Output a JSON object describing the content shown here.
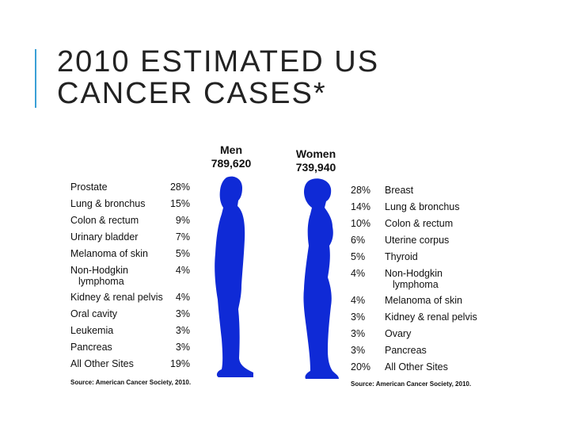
{
  "title": {
    "line1": "2010 ESTIMATED US",
    "line2": "CANCER CASES*"
  },
  "colors": {
    "accent": "#3aa0d6",
    "silhouette": "#0f2ad6"
  },
  "men": {
    "heading": "Men",
    "total": "789,620",
    "rows": [
      {
        "label": "Prostate",
        "pct": "28%"
      },
      {
        "label": "Lung & bronchus",
        "pct": "15%"
      },
      {
        "label": "Colon & rectum",
        "pct": "9%"
      },
      {
        "label": "Urinary bladder",
        "pct": "7%"
      },
      {
        "label": "Melanoma of skin",
        "pct": "5%"
      },
      {
        "label": "Non-Hodgkin",
        "label2": "lymphoma",
        "pct": "4%"
      },
      {
        "label": "Kidney & renal pelvis",
        "pct": "4%"
      },
      {
        "label": "Oral cavity",
        "pct": "3%"
      },
      {
        "label": "Leukemia",
        "pct": "3%"
      },
      {
        "label": "Pancreas",
        "pct": "3%"
      },
      {
        "label": "All Other Sites",
        "pct": "19%"
      }
    ],
    "source": "Source: American Cancer Society, 2010."
  },
  "women": {
    "heading": "Women",
    "total": "739,940",
    "rows": [
      {
        "label": "Breast",
        "pct": "28%"
      },
      {
        "label": "Lung & bronchus",
        "pct": "14%"
      },
      {
        "label": "Colon & rectum",
        "pct": "10%"
      },
      {
        "label": "Uterine corpus",
        "pct": "6%"
      },
      {
        "label": "Thyroid",
        "pct": "5%"
      },
      {
        "label": "Non-Hodgkin",
        "label2": "lymphoma",
        "pct": "4%"
      },
      {
        "label": "Melanoma of skin",
        "pct": "4%"
      },
      {
        "label": "Kidney & renal pelvis",
        "pct": "3%"
      },
      {
        "label": "Ovary",
        "pct": "3%"
      },
      {
        "label": "Pancreas",
        "pct": "3%"
      },
      {
        "label": "All Other Sites",
        "pct": "20%"
      }
    ],
    "source": "Source: American Cancer Society, 2010."
  }
}
